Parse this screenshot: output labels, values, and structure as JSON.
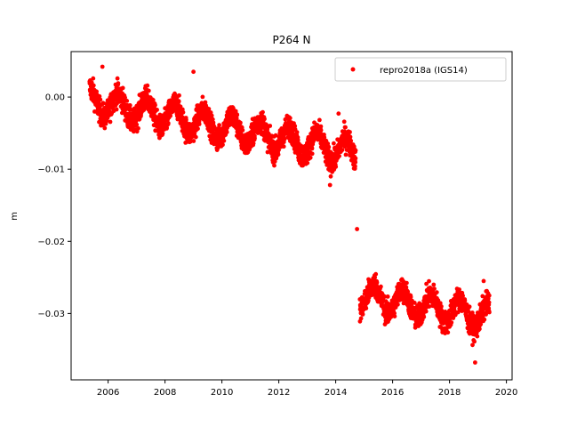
{
  "chart_data": {
    "type": "scatter",
    "title": "P264 N",
    "xlabel": "",
    "ylabel": "m",
    "xlim": [
      2004.7,
      2020.2
    ],
    "ylim": [
      -0.0392,
      0.0063
    ],
    "x_ticks": [
      2006,
      2008,
      2010,
      2012,
      2014,
      2016,
      2018,
      2020
    ],
    "x_tick_labels": [
      "2006",
      "2008",
      "2010",
      "2012",
      "2014",
      "2016",
      "2018",
      "2020"
    ],
    "y_ticks": [
      0.0,
      -0.01,
      -0.02,
      -0.03
    ],
    "y_tick_labels": [
      "0.00",
      "−0.01",
      "−0.02",
      "−0.03"
    ],
    "grid": false,
    "legend_position": "top-right",
    "series": [
      {
        "name": "repro2018a (IGS14)",
        "color": "#ff0000",
        "marker": "circle",
        "segments": [
          {
            "x_start": 2005.35,
            "x_end": 2014.7,
            "trend_start": -0.0005,
            "trend_end": -0.0078,
            "seasonal_amplitude": 0.0018,
            "noise_spread": 0.0012
          },
          {
            "x_start": 2014.85,
            "x_end": 2019.4,
            "trend_start": -0.0275,
            "trend_end": -0.0305,
            "seasonal_amplitude": 0.0018,
            "noise_spread": 0.0012
          }
        ],
        "outliers": [
          {
            "x": 2005.8,
            "y": 0.0042
          },
          {
            "x": 2009.0,
            "y": 0.0035
          },
          {
            "x": 2014.75,
            "y": -0.0183
          },
          {
            "x": 2013.8,
            "y": -0.0122
          },
          {
            "x": 2018.9,
            "y": -0.0368
          },
          {
            "x": 2019.2,
            "y": -0.0255
          },
          {
            "x": 2014.1,
            "y": -0.0023
          }
        ]
      }
    ]
  }
}
